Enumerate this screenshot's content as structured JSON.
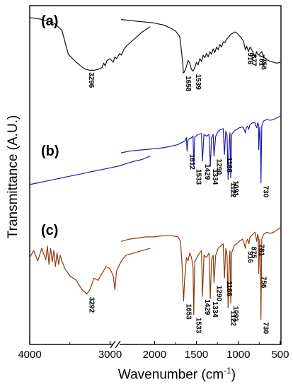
{
  "chart_data": {
    "type": "line",
    "title": "",
    "xlabel": "Wavenumber (cm",
    "xlabel_sup": "-1",
    "xlabel_end": ")",
    "ylabel": "Transmittance (A.U.)",
    "x_reversed": true,
    "x_axis_break": [
      2400,
      2500
    ],
    "xticks": [
      "4000",
      "3000",
      "2000",
      "1500",
      "1000",
      "500"
    ],
    "yticks": "none",
    "series": [
      {
        "name": "(a)",
        "color": "#111111",
        "x": [
          4000,
          3900,
          3800,
          3700,
          3600,
          3520,
          3420,
          3340,
          3300,
          3250,
          3200,
          3150,
          3100,
          3080,
          3060,
          3040,
          3000,
          2960,
          2940,
          2920,
          2880,
          2860,
          2830,
          2800,
          2700,
          2600,
          2500,
          2400,
          2300,
          2200,
          2100,
          2000,
          1950,
          1900,
          1850,
          1800,
          1750,
          1700,
          1680,
          1660,
          1658,
          1645,
          1620,
          1600,
          1580,
          1560,
          1539,
          1520,
          1500,
          1480,
          1460,
          1440,
          1420,
          1400,
          1380,
          1360,
          1340,
          1320,
          1300,
          1280,
          1260,
          1240,
          1220,
          1200,
          1180,
          1160,
          1140,
          1120,
          1100,
          1080,
          1060,
          1040,
          1020,
          1000,
          970,
          940,
          916,
          900,
          880,
          860,
          840,
          820,
          800,
          781,
          770,
          756,
          740,
          720,
          700,
          660,
          620,
          580,
          540,
          500
        ],
        "y": [
          96,
          95,
          93,
          90,
          82,
          55,
          46,
          40,
          38,
          37,
          37,
          38,
          40,
          45,
          42,
          48,
          50,
          46,
          52,
          50,
          56,
          54,
          60,
          64,
          72,
          80,
          86,
          94,
          93,
          92,
          91,
          90,
          89,
          88,
          86,
          84,
          81,
          75,
          60,
          42,
          34,
          35,
          41,
          48,
          45,
          38,
          36,
          40,
          46,
          43,
          50,
          47,
          54,
          51,
          56,
          52,
          58,
          55,
          61,
          57,
          63,
          60,
          66,
          63,
          69,
          68,
          72,
          74,
          76,
          78,
          79,
          80,
          79,
          77,
          74,
          70,
          60,
          64,
          58,
          63,
          60,
          56,
          52,
          58,
          55,
          54,
          56,
          58,
          52,
          49,
          47,
          46,
          45,
          46
        ]
      },
      {
        "name": "(b)",
        "color": "#1c1cb0",
        "x": [
          4000,
          3900,
          3800,
          3700,
          3600,
          3500,
          3400,
          3300,
          3200,
          3100,
          3000,
          2900,
          2800,
          2700,
          2600,
          2500,
          2400,
          2300,
          2200,
          2100,
          2000,
          1900,
          1800,
          1720,
          1680,
          1640,
          1620,
          1612,
          1600,
          1560,
          1540,
          1533,
          1520,
          1480,
          1440,
          1429,
          1410,
          1380,
          1350,
          1334,
          1320,
          1300,
          1290,
          1270,
          1240,
          1210,
          1180,
          1166,
          1150,
          1135,
          1122,
          1110,
          1100,
          1091,
          1080,
          1050,
          1020,
          990,
          950,
          930,
          916,
          905,
          890,
          877,
          860,
          830,
          800,
          790,
          781,
          770,
          760,
          756,
          745,
          735,
          730,
          720,
          700,
          660,
          620,
          580,
          540,
          500
        ],
        "y": [
          6,
          8,
          10,
          12,
          14,
          16,
          18,
          20,
          22,
          24,
          26,
          28,
          31,
          34,
          36,
          40,
          44,
          46,
          47,
          48,
          49,
          50,
          52,
          54,
          56,
          58,
          62,
          46,
          60,
          62,
          64,
          28,
          63,
          66,
          67,
          34,
          66,
          64,
          66,
          28,
          62,
          66,
          40,
          64,
          70,
          72,
          73,
          42,
          70,
          65,
          12,
          55,
          68,
          14,
          66,
          70,
          72,
          74,
          75,
          72,
          68,
          74,
          76,
          72,
          78,
          80,
          80,
          76,
          74,
          80,
          78,
          48,
          75,
          60,
          8,
          76,
          82,
          84,
          83,
          84,
          86,
          88
        ]
      },
      {
        "name": "(c)",
        "color": "#8b3a0e",
        "x": [
          4000,
          3950,
          3900,
          3850,
          3800,
          3780,
          3760,
          3740,
          3720,
          3700,
          3680,
          3660,
          3640,
          3620,
          3600,
          3560,
          3500,
          3420,
          3350,
          3300,
          3292,
          3250,
          3200,
          3150,
          3100,
          3050,
          3000,
          2960,
          2940,
          2920,
          2880,
          2850,
          2800,
          2700,
          2600,
          2500,
          2400,
          2300,
          2200,
          2100,
          2000,
          1900,
          1800,
          1720,
          1690,
          1670,
          1653,
          1640,
          1620,
          1600,
          1580,
          1560,
          1540,
          1533,
          1520,
          1480,
          1440,
          1429,
          1410,
          1380,
          1350,
          1334,
          1320,
          1300,
          1290,
          1270,
          1240,
          1210,
          1180,
          1166,
          1150,
          1135,
          1122,
          1110,
          1100,
          1091,
          1080,
          1050,
          1020,
          990,
          950,
          930,
          916,
          905,
          890,
          875,
          860,
          830,
          800,
          790,
          781,
          770,
          760,
          756,
          745,
          735,
          730,
          720,
          700,
          660,
          620,
          580,
          540,
          500
        ],
        "y": [
          58,
          64,
          55,
          66,
          56,
          68,
          52,
          66,
          54,
          64,
          50,
          62,
          52,
          60,
          55,
          48,
          42,
          38,
          30,
          27,
          26,
          30,
          40,
          38,
          44,
          50,
          48,
          42,
          30,
          46,
          52,
          56,
          60,
          62,
          64,
          66,
          72,
          74,
          75,
          76,
          76,
          77,
          77,
          76,
          72,
          50,
          20,
          40,
          58,
          55,
          62,
          58,
          50,
          8,
          54,
          60,
          64,
          24,
          60,
          58,
          62,
          22,
          56,
          60,
          36,
          60,
          66,
          68,
          70,
          40,
          66,
          60,
          14,
          52,
          64,
          18,
          62,
          68,
          70,
          72,
          74,
          70,
          66,
          72,
          74,
          70,
          76,
          78,
          80,
          76,
          72,
          78,
          76,
          44,
          74,
          56,
          4,
          74,
          78,
          80,
          79,
          80,
          82,
          84
        ]
      }
    ],
    "panel_labels": [
      "(a)",
      "(b)",
      "(c)"
    ],
    "annotations": [
      {
        "series": "(a)",
        "x": 3296,
        "text": "3296"
      },
      {
        "series": "(a)",
        "x": 1658,
        "text": "1658"
      },
      {
        "series": "(a)",
        "x": 1539,
        "text": "1539"
      },
      {
        "series": "(a)",
        "x": 916,
        "text": "916"
      },
      {
        "series": "(a)",
        "x": 877,
        "text": "877"
      },
      {
        "series": "(a)",
        "x": 781,
        "text": "781"
      },
      {
        "series": "(a)",
        "x": 756,
        "text": "756"
      },
      {
        "series": "(b)",
        "x": 1612,
        "text": "1612"
      },
      {
        "series": "(b)",
        "x": 1533,
        "text": "1533"
      },
      {
        "series": "(b)",
        "x": 1429,
        "text": "1429"
      },
      {
        "series": "(b)",
        "x": 1334,
        "text": "1334"
      },
      {
        "series": "(b)",
        "x": 1290,
        "text": "1290"
      },
      {
        "series": "(b)",
        "x": 1166,
        "text": "1166"
      },
      {
        "series": "(b)",
        "x": 1122,
        "text": "1122"
      },
      {
        "series": "(b)",
        "x": 1091,
        "text": "1091"
      },
      {
        "series": "(b)",
        "x": 730,
        "text": "730"
      },
      {
        "series": "(c)",
        "x": 3292,
        "text": "3292"
      },
      {
        "series": "(c)",
        "x": 1653,
        "text": "1653"
      },
      {
        "series": "(c)",
        "x": 1533,
        "text": "1533"
      },
      {
        "series": "(c)",
        "x": 1429,
        "text": "1429"
      },
      {
        "series": "(c)",
        "x": 1334,
        "text": "1334"
      },
      {
        "series": "(c)",
        "x": 1290,
        "text": "1290"
      },
      {
        "series": "(c)",
        "x": 1166,
        "text": "1166"
      },
      {
        "series": "(c)",
        "x": 1122,
        "text": "1122"
      },
      {
        "series": "(c)",
        "x": 1091,
        "text": "1091"
      },
      {
        "series": "(c)",
        "x": 916,
        "text": "916"
      },
      {
        "series": "(c)",
        "x": 875,
        "text": "875"
      },
      {
        "series": "(c)",
        "x": 781,
        "text": "781"
      },
      {
        "series": "(c)",
        "x": 756,
        "text": "756"
      },
      {
        "series": "(c)",
        "x": 730,
        "text": "730"
      }
    ]
  }
}
